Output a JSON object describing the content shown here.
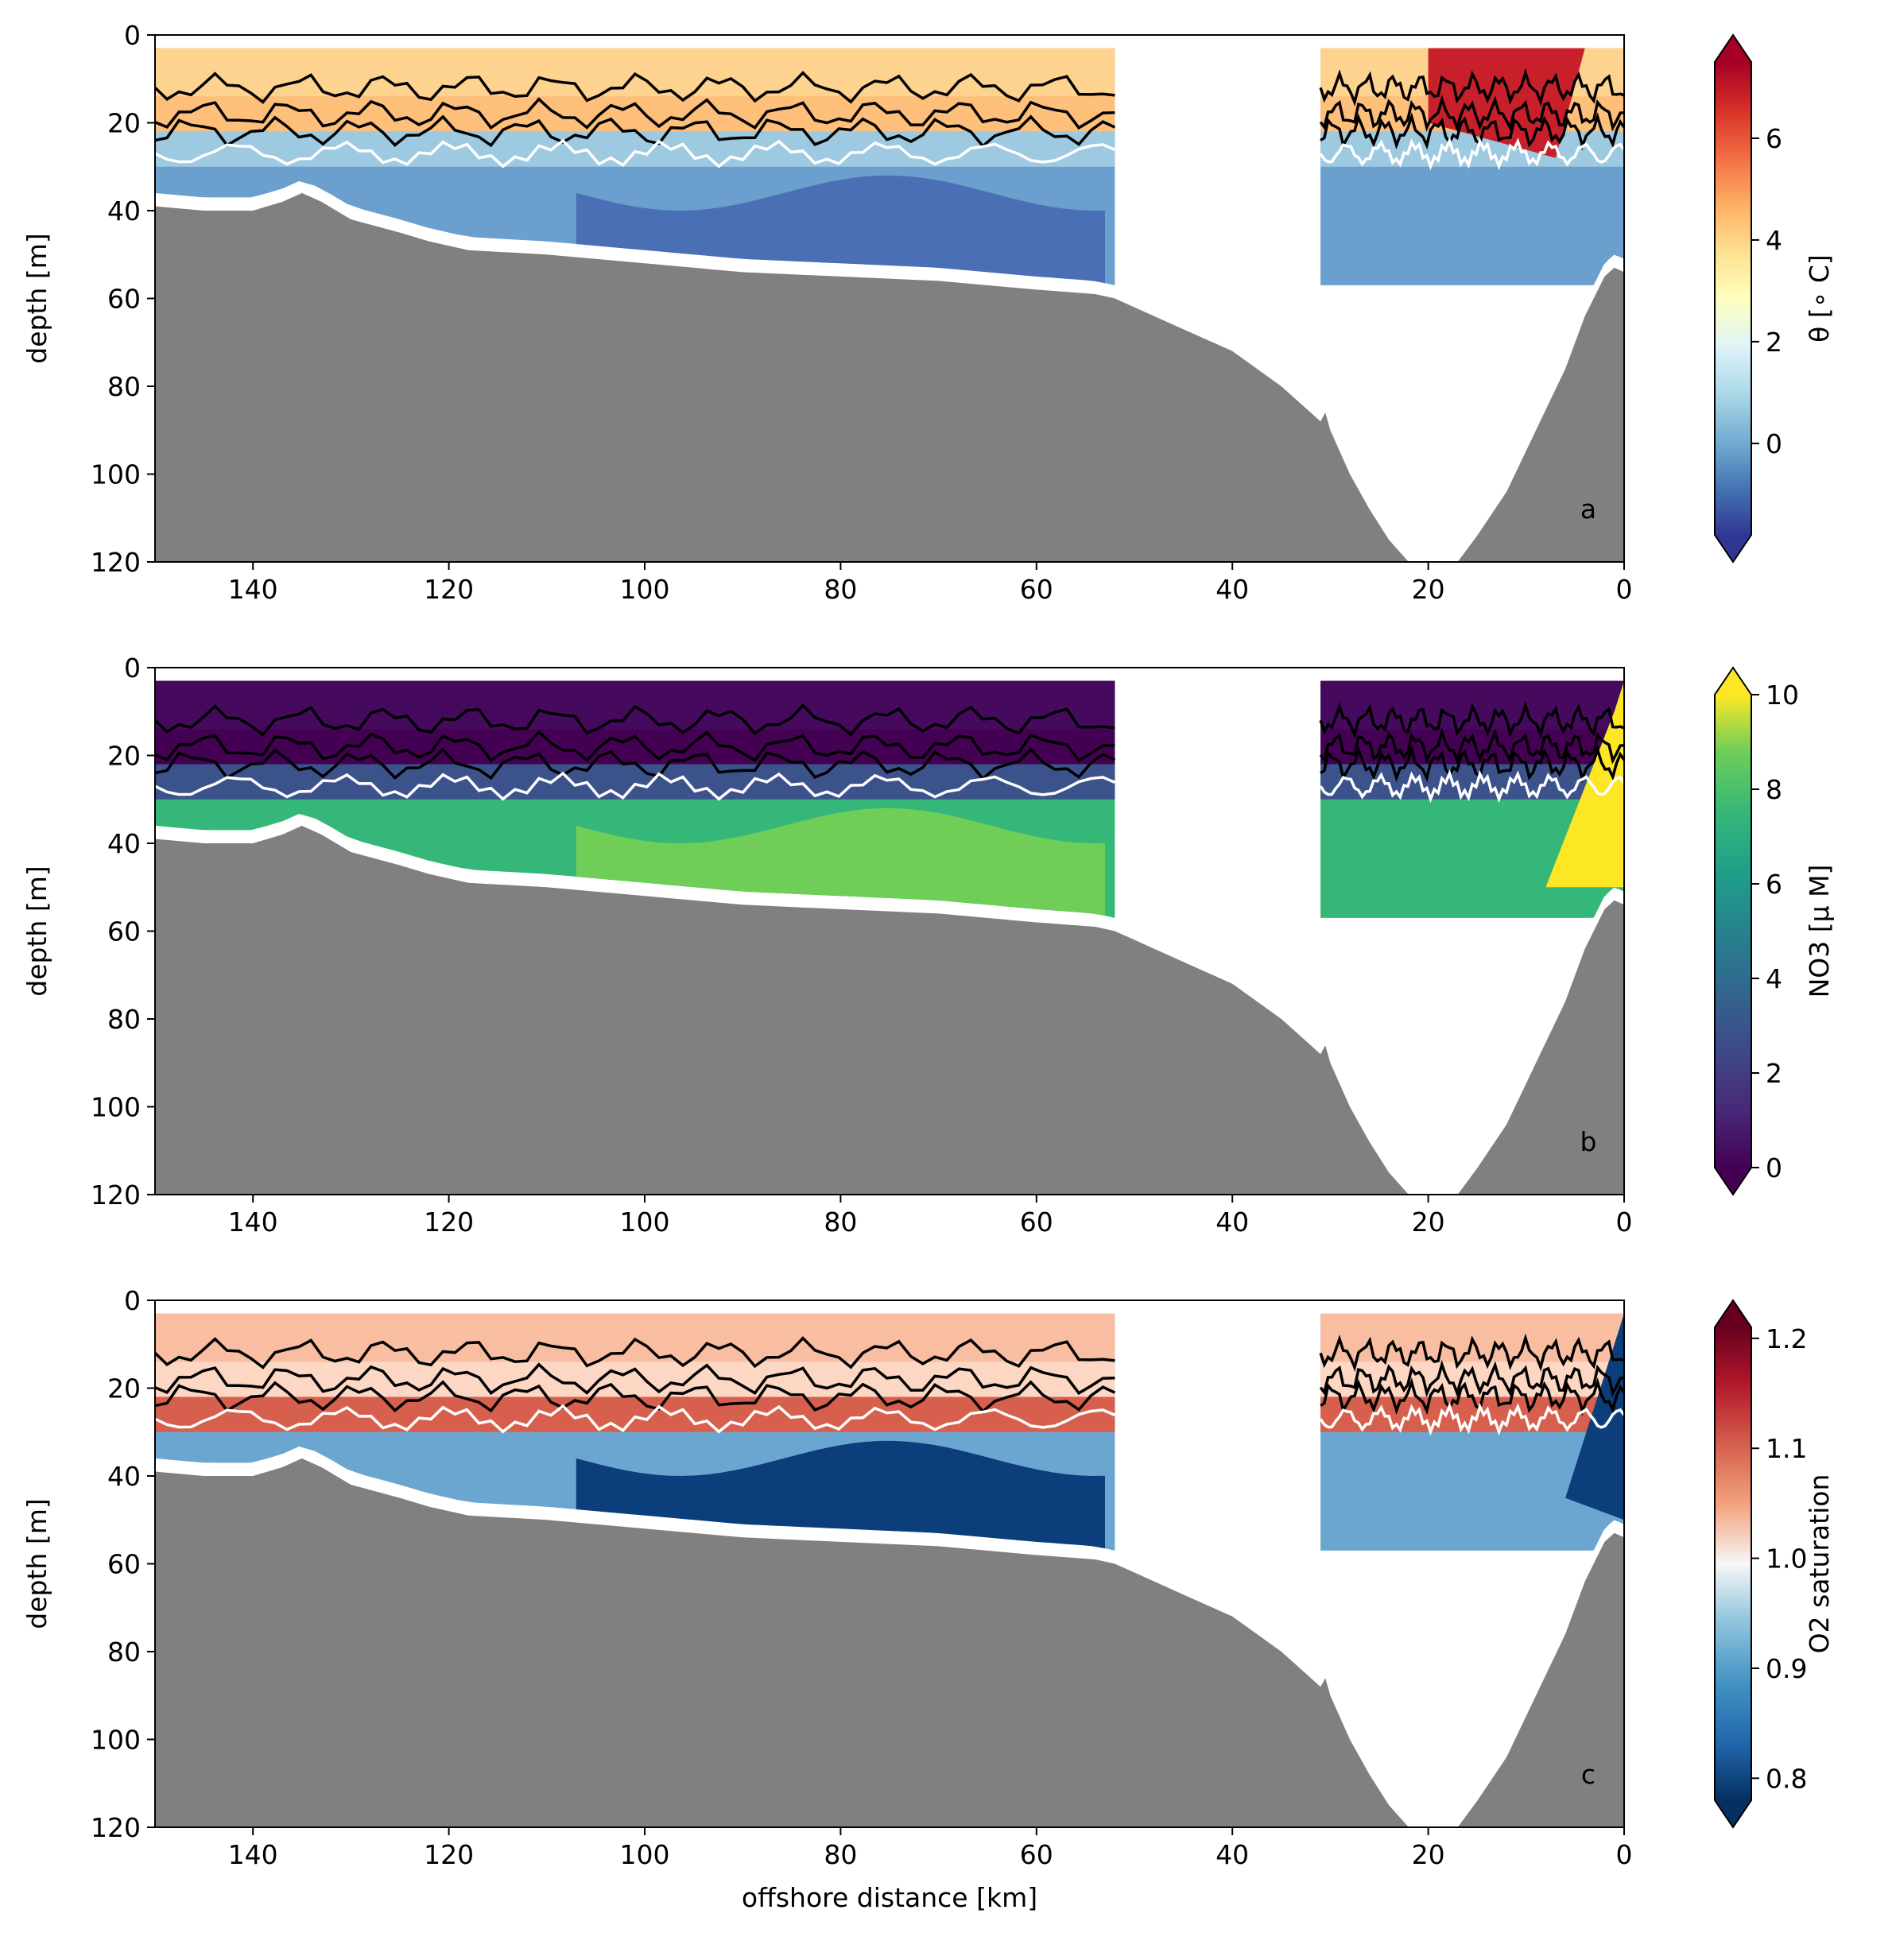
{
  "chart_data": [
    {
      "type": "heatmap",
      "panel_letter": "a",
      "ylabel": "depth [m]",
      "xlabel": "",
      "xlim": [
        150,
        0
      ],
      "ylim": [
        120,
        0
      ],
      "xticks": [
        140,
        120,
        100,
        80,
        60,
        40,
        20,
        0
      ],
      "yticks": [
        0,
        20,
        40,
        60,
        80,
        100,
        120
      ],
      "colorbar": {
        "label": "θ [∘ C]",
        "colormap": "RdYlBu_r",
        "range": [
          -1.8,
          7.5
        ],
        "ticks": [
          6,
          4,
          2,
          0
        ],
        "extend": "both"
      },
      "description_values": {
        "surface_layer_theta": 4.5,
        "bottom_layer_theta": -0.5,
        "nearshore_warm_core_theta": 7.0
      }
    },
    {
      "type": "heatmap",
      "panel_letter": "b",
      "ylabel": "depth [m]",
      "xlabel": "",
      "xlim": [
        150,
        0
      ],
      "ylim": [
        120,
        0
      ],
      "xticks": [
        140,
        120,
        100,
        80,
        60,
        40,
        20,
        0
      ],
      "yticks": [
        0,
        20,
        40,
        60,
        80,
        100,
        120
      ],
      "colorbar": {
        "label": "NO3 [μ M]",
        "colormap": "viridis",
        "range": [
          0,
          10
        ],
        "ticks": [
          10,
          8,
          6,
          4,
          2,
          0
        ],
        "extend": "both"
      },
      "description_values": {
        "surface_layer_no3": 0.2,
        "bottom_layer_no3": 7.5,
        "nearshore_bottom_no3": 10
      }
    },
    {
      "type": "heatmap",
      "panel_letter": "c",
      "ylabel": "depth [m]",
      "xlabel": "offshore distance [km]",
      "xlim": [
        150,
        0
      ],
      "ylim": [
        120,
        0
      ],
      "xticks": [
        140,
        120,
        100,
        80,
        60,
        40,
        20,
        0
      ],
      "yticks": [
        0,
        20,
        40,
        60,
        80,
        100,
        120
      ],
      "colorbar": {
        "label": "O2 saturation",
        "colormap": "RdBu_r",
        "range": [
          0.78,
          1.21
        ],
        "ticks": [
          1.2,
          1.1,
          1.0,
          0.9,
          0.8
        ],
        "tick_labels": [
          "1.2",
          "1.1",
          "1.0",
          "0.9",
          "0.8"
        ],
        "extend": "both"
      },
      "description_values": {
        "surface_layer_o2sat": 1.05,
        "subsurface_max_o2sat": 1.15,
        "bottom_layer_o2sat": 0.8
      }
    }
  ],
  "bathymetry": {
    "x": [
      150,
      145,
      140,
      137,
      135,
      133,
      130,
      125,
      122,
      118,
      110,
      100,
      90,
      80,
      70,
      60,
      54,
      52,
      50,
      45,
      40,
      35,
      31,
      30.5,
      30,
      28,
      26,
      24,
      22,
      21,
      19,
      17,
      15,
      12,
      9,
      6,
      4,
      2,
      1,
      0
    ],
    "depth": [
      39,
      40,
      40,
      38,
      36,
      38,
      42,
      45,
      47,
      49,
      50,
      52,
      54,
      55,
      56,
      58,
      59,
      60,
      62,
      67,
      72,
      80,
      88,
      86,
      90,
      100,
      108,
      115,
      120,
      122,
      122,
      120,
      114,
      104,
      90,
      76,
      64,
      55,
      53,
      54
    ]
  },
  "sections": [
    {
      "x_start": 150,
      "x_end": 52,
      "surface": 3
    },
    {
      "x_start": 31,
      "x_end": 0,
      "surface": 3
    }
  ]
}
